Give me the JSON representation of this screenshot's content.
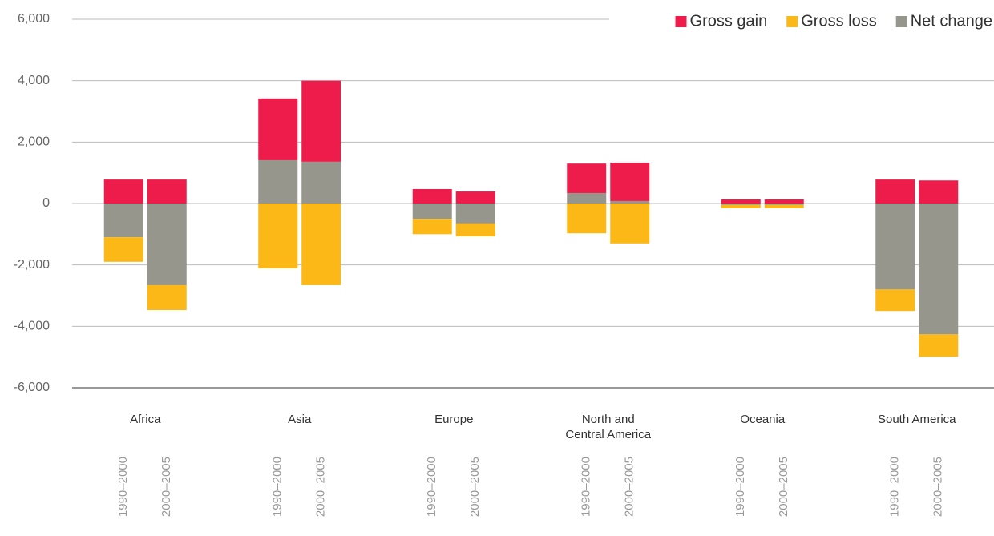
{
  "chart_data": {
    "type": "bar",
    "categories": [
      "Africa",
      "Asia",
      "Europe",
      "North and Central America",
      "Oceania",
      "South America"
    ],
    "periods": [
      "1990–2000",
      "2000–2005"
    ],
    "series": [
      {
        "name": "Gross gain",
        "color": "#ee1c4a",
        "values": [
          [
            780,
            780
          ],
          [
            2010,
            2640
          ],
          [
            470,
            390
          ],
          [
            960,
            1250
          ],
          [
            130,
            130
          ],
          [
            780,
            750
          ]
        ]
      },
      {
        "name": "Gross loss",
        "color": "#fcb817",
        "values": [
          [
            -800,
            -810
          ],
          [
            -2110,
            -2660
          ],
          [
            -500,
            -420
          ],
          [
            -970,
            -1300
          ],
          [
            -110,
            -110
          ],
          [
            -700,
            -730
          ]
        ]
      },
      {
        "name": "Net change",
        "color": "#96968c",
        "values": [
          [
            -1100,
            -2660
          ],
          [
            1410,
            1360
          ],
          [
            -500,
            -650
          ],
          [
            340,
            80
          ],
          [
            -40,
            -40
          ],
          [
            -2800,
            -4260
          ]
        ]
      }
    ],
    "stack_order": [
      "Net change",
      "Gross gain",
      "Gross loss"
    ],
    "ylim": [
      -6000,
      6000
    ],
    "yticks": [
      {
        "value": -6000,
        "label": "-6,000"
      },
      {
        "value": -4000,
        "label": "-4,000"
      },
      {
        "value": -2000,
        "label": "-2,000"
      },
      0,
      {
        "value": 2000,
        "label": "2,000"
      },
      {
        "value": 4000,
        "label": "4,000"
      },
      {
        "value": 6000,
        "label": "6,000"
      }
    ],
    "grid": true,
    "legend": "top-right"
  }
}
